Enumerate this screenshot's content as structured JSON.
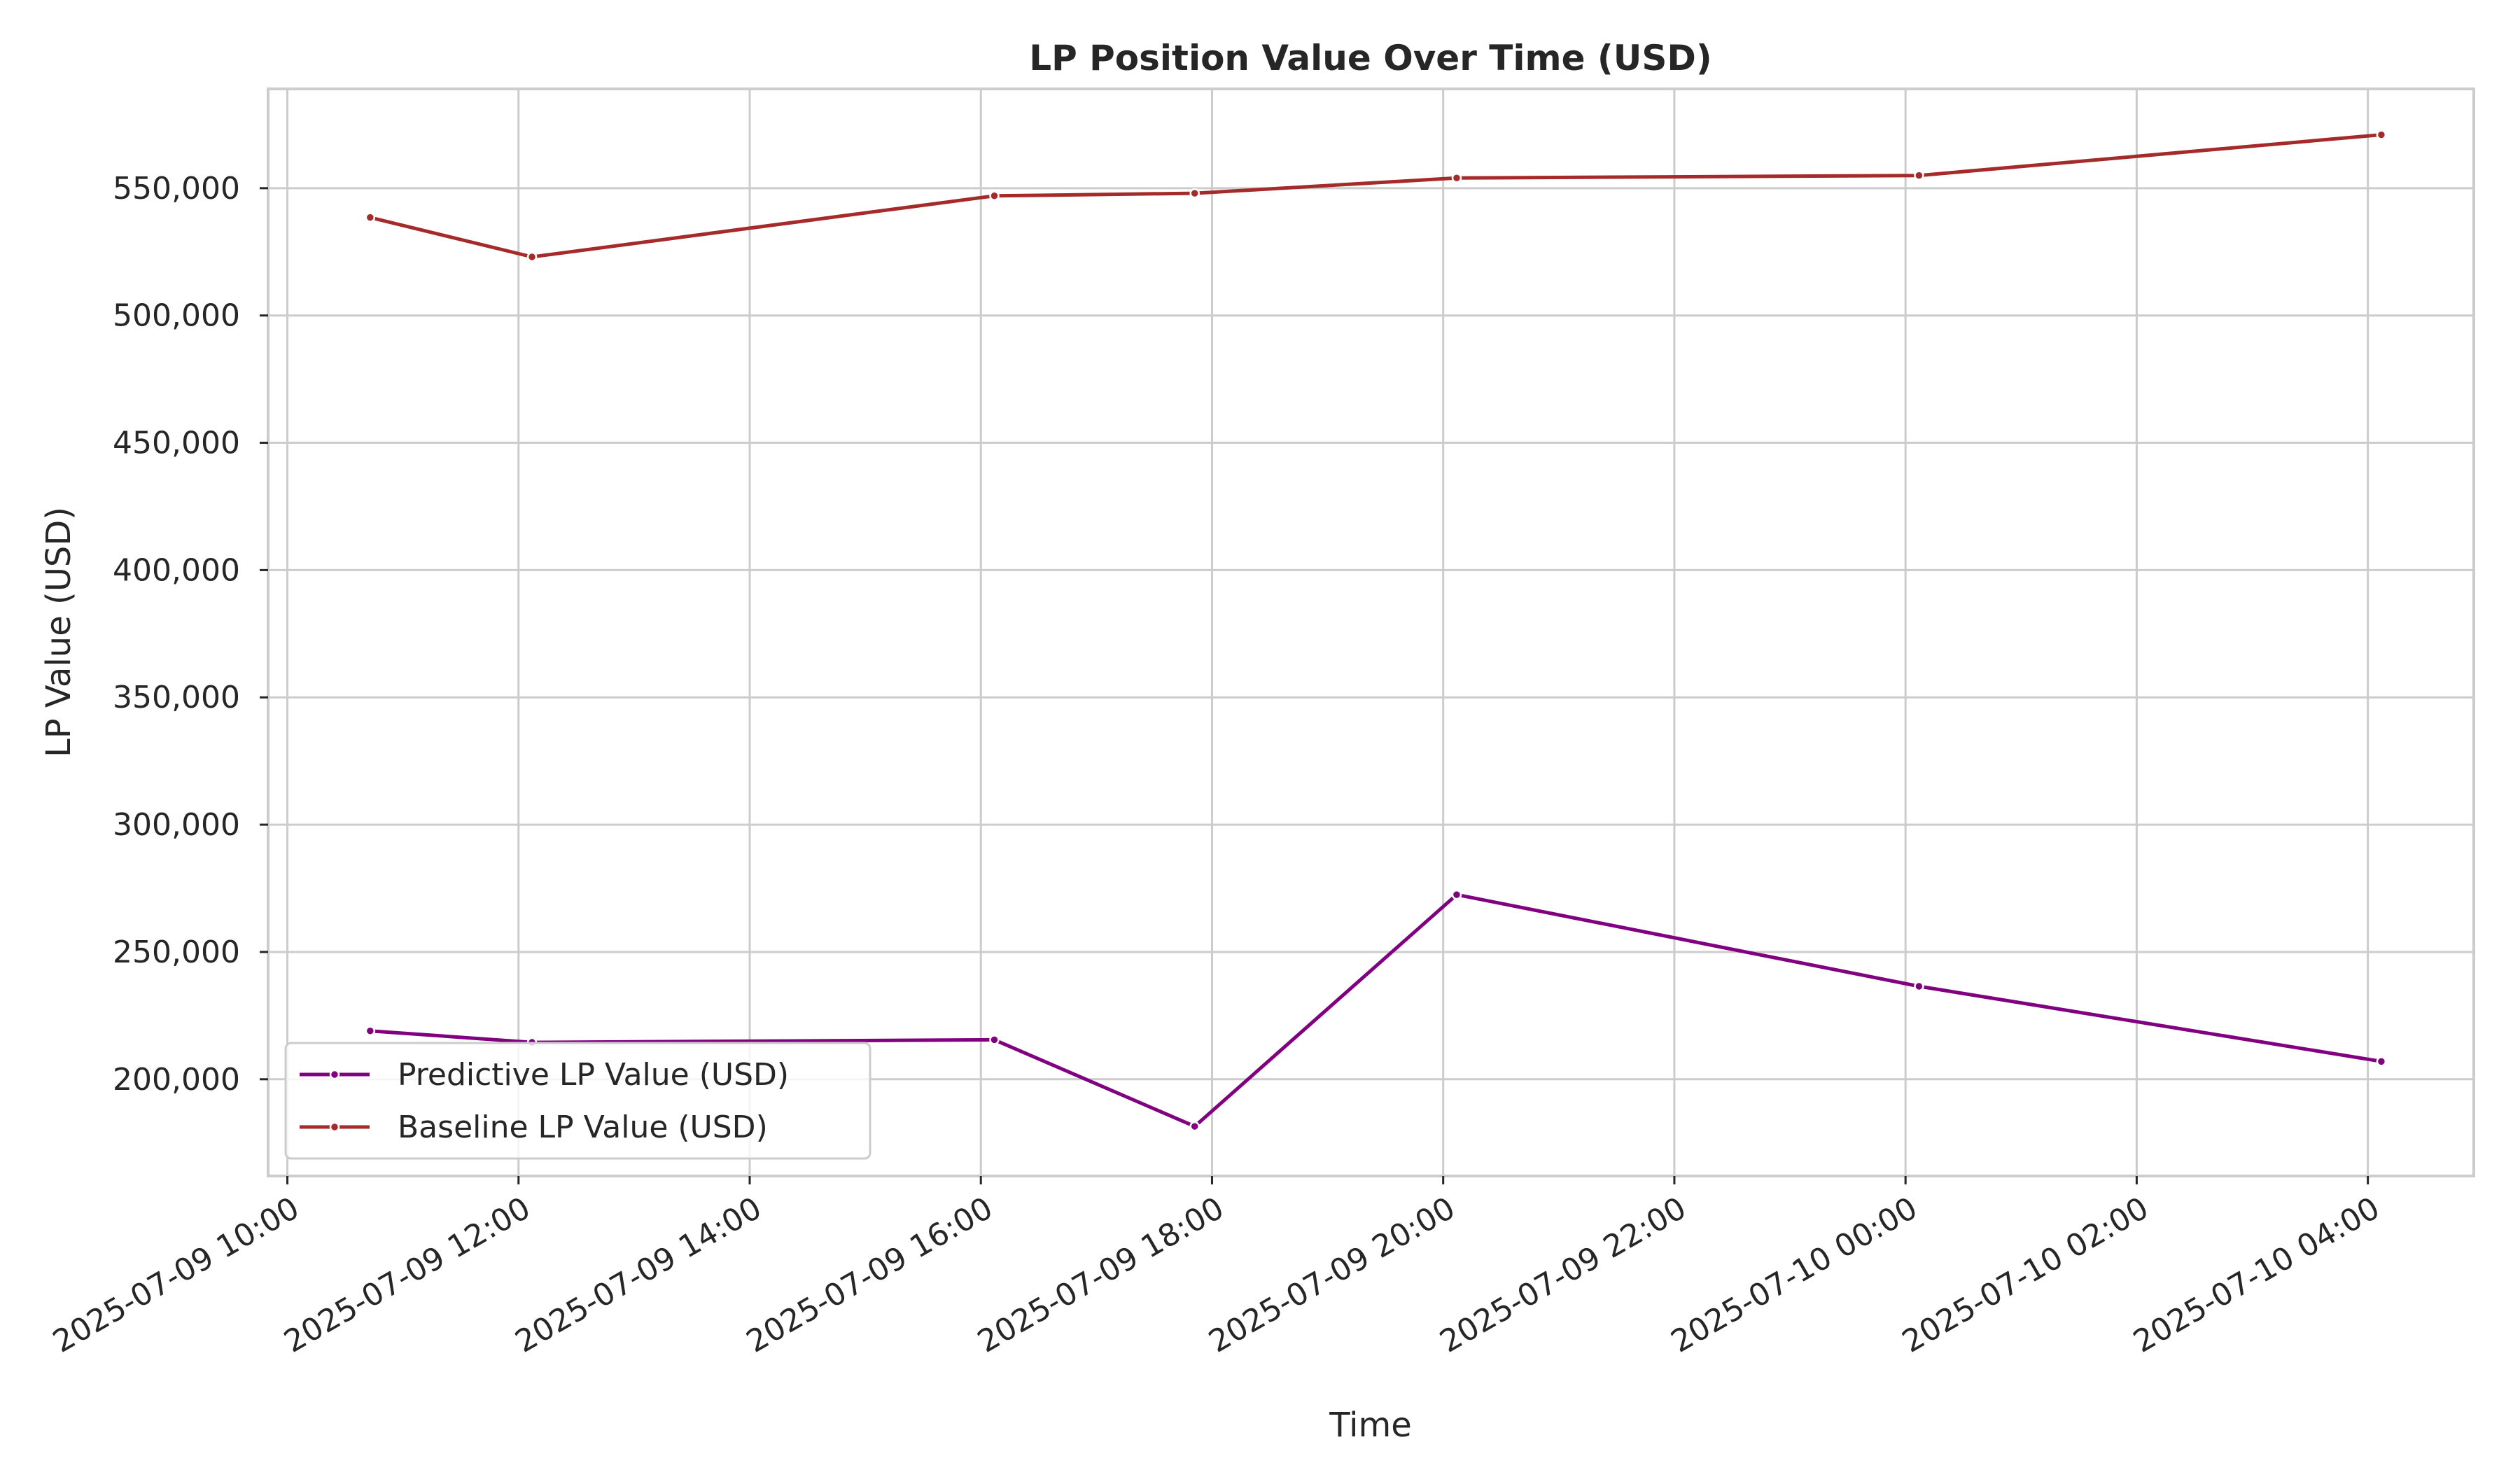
{
  "chart_data": {
    "type": "line",
    "title": "LP Position Value Over Time (USD)",
    "xlabel": "Time",
    "ylabel": "LP Value (USD)",
    "x_ticks": [
      "2025-07-09 10:00",
      "2025-07-09 12:00",
      "2025-07-09 14:00",
      "2025-07-09 16:00",
      "2025-07-09 18:00",
      "2025-07-09 20:00",
      "2025-07-09 22:00",
      "2025-07-10 00:00",
      "2025-07-10 02:00",
      "2025-07-10 04:00"
    ],
    "y_ticks": [
      "200,000",
      "250,000",
      "300,000",
      "350,000",
      "400,000",
      "450,000",
      "500,000",
      "550,000"
    ],
    "y_tick_values": [
      200000,
      250000,
      300000,
      350000,
      400000,
      450000,
      500000,
      550000
    ],
    "xlim": [
      "2025-07-09 09:50",
      "2025-07-10 04:55"
    ],
    "ylim": [
      162000,
      589000
    ],
    "grid": true,
    "legend_position": "lower-left",
    "series": [
      {
        "name": "Predictive LP Value (USD)",
        "color": "#800080",
        "x": [
          "2025-07-09 10:43",
          "2025-07-09 12:07",
          "2025-07-09 16:07",
          "2025-07-09 17:51",
          "2025-07-09 20:07",
          "2025-07-10 00:07",
          "2025-07-10 04:07"
        ],
        "y": [
          219000,
          214500,
          215500,
          181500,
          272500,
          236500,
          207000
        ]
      },
      {
        "name": "Baseline LP Value (USD)",
        "color": "#a52a2a",
        "x": [
          "2025-07-09 10:43",
          "2025-07-09 12:07",
          "2025-07-09 16:07",
          "2025-07-09 17:51",
          "2025-07-09 20:07",
          "2025-07-10 00:07",
          "2025-07-10 04:07"
        ],
        "y": [
          538500,
          523000,
          547000,
          548000,
          554000,
          555000,
          571000
        ]
      }
    ]
  }
}
